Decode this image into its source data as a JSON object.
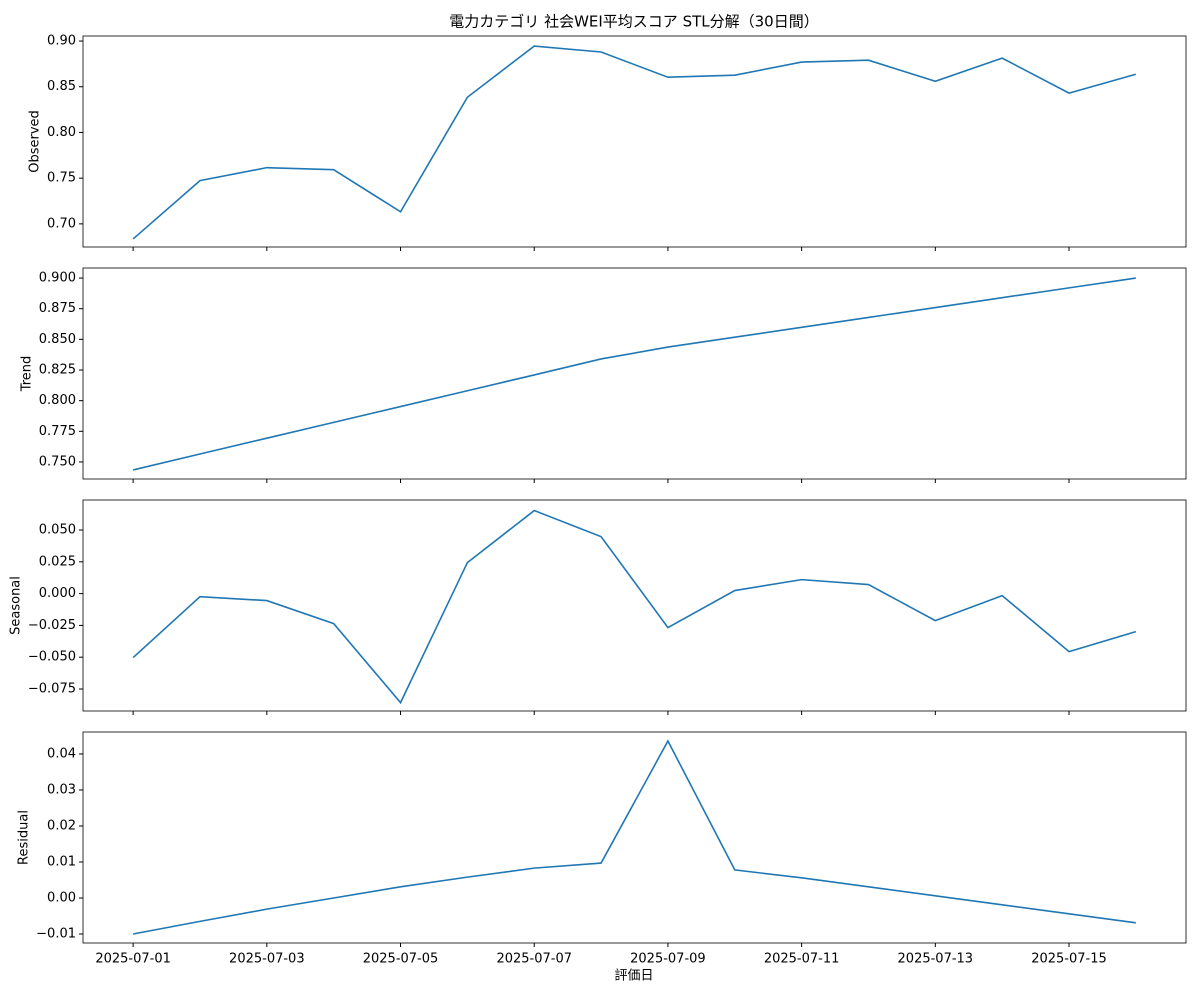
{
  "title": "電力カテゴリ 社会WEI平均スコア STL分解（30日間）",
  "xlabel": "評価日",
  "x": [
    "2025-07-01",
    "2025-07-02",
    "2025-07-03",
    "2025-07-04",
    "2025-07-05",
    "2025-07-06",
    "2025-07-07",
    "2025-07-08",
    "2025-07-09",
    "2025-07-10",
    "2025-07-11",
    "2025-07-12",
    "2025-07-13",
    "2025-07-14",
    "2025-07-15",
    "2025-07-16"
  ],
  "xticks": [
    "2025-07-01",
    "2025-07-03",
    "2025-07-05",
    "2025-07-07",
    "2025-07-09",
    "2025-07-11",
    "2025-07-13",
    "2025-07-15"
  ],
  "chart_data": [
    {
      "type": "line",
      "ylabel": "Observed",
      "color": "#1f77b4",
      "values": [
        0.6835,
        0.7473,
        0.7615,
        0.7593,
        0.7132,
        0.8385,
        0.8945,
        0.888,
        0.8604,
        0.8626,
        0.877,
        0.879,
        0.856,
        0.8813,
        0.843,
        0.8637
      ],
      "ylim": [
        0.6747,
        0.9055
      ],
      "yticks": [
        {
          "value": 0.7,
          "label": "0.70"
        },
        {
          "value": 0.75,
          "label": "0.75"
        },
        {
          "value": 0.8,
          "label": "0.80"
        },
        {
          "value": 0.85,
          "label": "0.85"
        },
        {
          "value": 0.9,
          "label": "0.90"
        }
      ]
    },
    {
      "type": "line",
      "ylabel": "Trend",
      "color": "#1f77b4",
      "values": [
        0.7435,
        0.7565,
        0.7694,
        0.7823,
        0.7952,
        0.8081,
        0.821,
        0.834,
        0.8437,
        0.8518,
        0.8598,
        0.8679,
        0.8759,
        0.884,
        0.892,
        0.9
      ],
      "ylim": [
        0.7361,
        0.9082
      ],
      "yticks": [
        {
          "value": 0.75,
          "label": "0.750"
        },
        {
          "value": 0.775,
          "label": "0.775"
        },
        {
          "value": 0.8,
          "label": "0.800"
        },
        {
          "value": 0.825,
          "label": "0.825"
        },
        {
          "value": 0.85,
          "label": "0.850"
        },
        {
          "value": 0.875,
          "label": "0.875"
        },
        {
          "value": 0.9,
          "label": "0.900"
        }
      ]
    },
    {
      "type": "line",
      "ylabel": "Seasonal",
      "color": "#1f77b4",
      "values": [
        -0.0503,
        -0.0024,
        -0.0055,
        -0.0236,
        -0.0857,
        0.0244,
        0.0653,
        0.0448,
        -0.0267,
        0.0024,
        0.011,
        0.0071,
        -0.0212,
        -0.0016,
        -0.0456,
        -0.0299
      ],
      "ylim": [
        -0.0923,
        0.0736
      ],
      "yticks": [
        {
          "value": -0.075,
          "label": "−0.075"
        },
        {
          "value": -0.05,
          "label": "−0.050"
        },
        {
          "value": -0.025,
          "label": "−0.025"
        },
        {
          "value": 0,
          "label": "0.000"
        },
        {
          "value": 0.025,
          "label": "0.025"
        },
        {
          "value": 0.05,
          "label": "0.050"
        }
      ]
    },
    {
      "type": "line",
      "ylabel": "Residual",
      "color": "#1f77b4",
      "values": [
        -0.01,
        -0.0065,
        -0.0031,
        0.0,
        0.0031,
        0.0058,
        0.0083,
        0.0097,
        0.0436,
        0.0078,
        0.0056,
        0.0031,
        0.0006,
        -0.0019,
        -0.0044,
        -0.0069
      ],
      "ylim": [
        -0.0125,
        0.0461
      ],
      "yticks": [
        {
          "value": -0.01,
          "label": "−0.01"
        },
        {
          "value": 0,
          "label": "0.00"
        },
        {
          "value": 0.01,
          "label": "0.01"
        },
        {
          "value": 0.02,
          "label": "0.02"
        },
        {
          "value": 0.03,
          "label": "0.03"
        },
        {
          "value": 0.04,
          "label": "0.04"
        }
      ]
    }
  ]
}
